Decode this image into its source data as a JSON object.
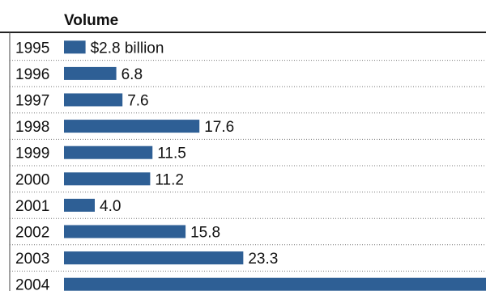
{
  "chart_data": {
    "type": "bar",
    "orientation": "horizontal",
    "column_header": "Volume",
    "unit_suffix": " billion",
    "currency_prefix": "$",
    "categories": [
      "1995",
      "1996",
      "1997",
      "1998",
      "1999",
      "2000",
      "2001",
      "2002",
      "2003",
      "2004"
    ],
    "values": [
      2.8,
      6.8,
      7.6,
      17.6,
      11.5,
      11.2,
      4.0,
      15.8,
      23.3,
      null
    ],
    "value_labels": [
      "$2.8 billion",
      "6.8",
      "7.6",
      "17.6",
      "11.5",
      "11.2",
      "4.0",
      "15.8",
      "23.3",
      ""
    ],
    "bar_color": "#2e5f95",
    "grid": false,
    "legend": "none"
  }
}
